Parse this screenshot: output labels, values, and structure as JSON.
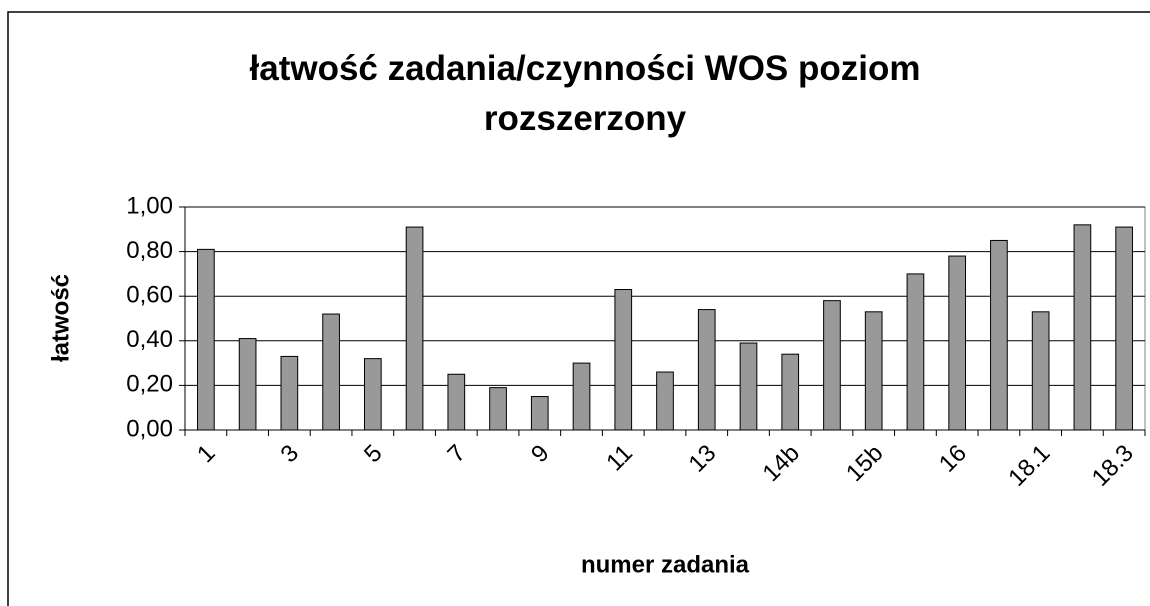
{
  "chart_data": {
    "type": "bar",
    "title": "łatwość zadania/czynności WOS poziom rozszerzony",
    "x_label": "numer zadania",
    "y_label": "łatwość",
    "categories": [
      "1",
      null,
      "3",
      null,
      "5",
      null,
      "7",
      null,
      "9",
      null,
      "11",
      null,
      "13",
      null,
      "14b",
      null,
      "15b",
      null,
      "16",
      null,
      "18.1",
      null,
      "18.3"
    ],
    "values": [
      0.81,
      0.41,
      0.33,
      0.52,
      0.32,
      0.91,
      0.25,
      0.19,
      0.15,
      0.3,
      0.63,
      0.26,
      0.54,
      0.39,
      0.34,
      0.58,
      0.53,
      0.7,
      0.78,
      0.85,
      0.53,
      0.92,
      0.91
    ],
    "color": "#999999",
    "ylim": [
      0,
      1
    ],
    "yticks": [
      {
        "value": 0,
        "label": "0,00"
      },
      {
        "value": 0.2,
        "label": "0,20"
      },
      {
        "value": 0.4,
        "label": "0,40"
      },
      {
        "value": 0.6,
        "label": "0,60"
      },
      {
        "value": 0.8,
        "label": "0,80"
      },
      {
        "value": 1,
        "label": "1,00"
      }
    ],
    "grid": true
  }
}
